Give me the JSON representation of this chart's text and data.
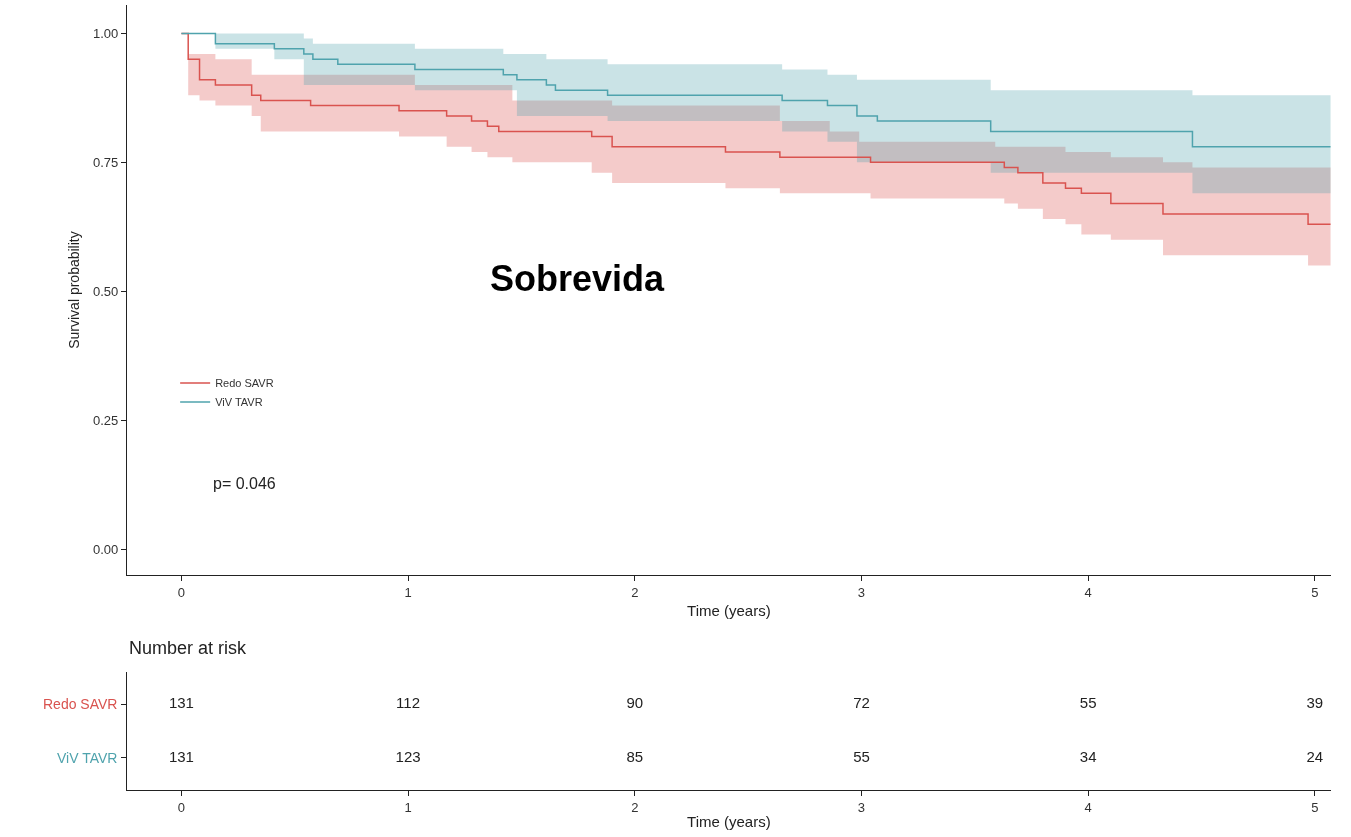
{
  "chart_data": [
    {
      "type": "step",
      "ylabel": "Survival probability",
      "xlabel": "Time (years)",
      "xlim": [
        -0.24,
        5.07
      ],
      "xticks": [
        0,
        1,
        2,
        3,
        4,
        5
      ],
      "ylim": [
        -0.05,
        1.055
      ],
      "yticks": [
        {
          "value": 0,
          "label": "0.00"
        },
        {
          "value": 0.25,
          "label": "0.25"
        },
        {
          "value": 0.5,
          "label": "0.50"
        },
        {
          "value": 0.75,
          "label": "0.75"
        },
        {
          "value": 1,
          "label": "1.00"
        }
      ],
      "legend": "left",
      "line_style": "solid",
      "marker": "none",
      "annotations": [
        "Sobrevida",
        "p= 0.046"
      ],
      "series": [
        {
          "name": "Redo SAVR",
          "color": "#d9534f",
          "x": [
            0,
            0.03,
            0.08,
            0.15,
            0.31,
            0.35,
            0.54,
            0.57,
            0.96,
            1.03,
            1.17,
            1.28,
            1.35,
            1.4,
            1.46,
            1.81,
            1.9,
            2.4,
            2.64,
            2.86,
            2.99,
            3.04,
            3.59,
            3.63,
            3.69,
            3.8,
            3.9,
            3.97,
            4.1,
            4.33,
            4.46,
            4.97,
            5.07
          ],
          "values": [
            1.0,
            0.95,
            0.91,
            0.9,
            0.88,
            0.87,
            0.87,
            0.86,
            0.85,
            0.85,
            0.84,
            0.83,
            0.82,
            0.81,
            0.81,
            0.8,
            0.78,
            0.77,
            0.76,
            0.76,
            0.76,
            0.75,
            0.75,
            0.74,
            0.73,
            0.71,
            0.7,
            0.69,
            0.67,
            0.65,
            0.65,
            0.63,
            0.63
          ],
          "lower": [
            1.0,
            0.88,
            0.87,
            0.86,
            0.84,
            0.81,
            0.81,
            0.81,
            0.8,
            0.8,
            0.78,
            0.77,
            0.76,
            0.76,
            0.75,
            0.73,
            0.71,
            0.7,
            0.69,
            0.69,
            0.69,
            0.68,
            0.68,
            0.67,
            0.66,
            0.64,
            0.63,
            0.61,
            0.6,
            0.57,
            0.57,
            0.55,
            0.55
          ],
          "upper": [
            1.0,
            0.96,
            0.96,
            0.95,
            0.92,
            0.92,
            0.92,
            0.92,
            0.92,
            0.9,
            0.9,
            0.9,
            0.9,
            0.9,
            0.87,
            0.87,
            0.86,
            0.86,
            0.83,
            0.81,
            0.79,
            0.79,
            0.78,
            0.78,
            0.78,
            0.78,
            0.77,
            0.77,
            0.76,
            0.75,
            0.74,
            0.74,
            0.74
          ]
        },
        {
          "name": "ViV TAVR",
          "color": "#4fa3ad",
          "x": [
            0,
            0.15,
            0.41,
            0.54,
            0.58,
            0.69,
            1.03,
            1.42,
            1.48,
            1.61,
            1.65,
            1.88,
            2.65,
            2.85,
            2.98,
            3.07,
            3.57,
            3.9,
            4.46,
            5.07
          ],
          "values": [
            1.0,
            0.98,
            0.97,
            0.96,
            0.95,
            0.94,
            0.93,
            0.92,
            0.91,
            0.9,
            0.89,
            0.88,
            0.87,
            0.86,
            0.84,
            0.83,
            0.81,
            0.81,
            0.78,
            0.78
          ],
          "lower": [
            1.0,
            0.97,
            0.95,
            0.9,
            0.9,
            0.9,
            0.89,
            0.89,
            0.84,
            0.84,
            0.84,
            0.83,
            0.81,
            0.79,
            0.75,
            0.75,
            0.73,
            0.73,
            0.69,
            0.69
          ],
          "upper": [
            1.0,
            1.0,
            1.0,
            0.99,
            0.98,
            0.98,
            0.97,
            0.96,
            0.96,
            0.95,
            0.95,
            0.94,
            0.93,
            0.92,
            0.91,
            0.91,
            0.89,
            0.89,
            0.88,
            0.88
          ]
        }
      ]
    },
    {
      "type": "heatmap",
      "title": "Number at risk",
      "xlabel": "Time (years)",
      "xlim": [
        -0.24,
        5.07
      ],
      "xticks": [
        0,
        1,
        2,
        3,
        4,
        5
      ],
      "x": [
        0,
        1,
        2,
        3,
        4,
        5
      ],
      "y_categories": [
        "Redo SAVR",
        "ViV TAVR"
      ],
      "colors": [
        "#d9534f",
        "#4fa3ad"
      ],
      "data_labels": true,
      "cells": [
        [
          131,
          112,
          90,
          72,
          55,
          39
        ],
        [
          131,
          123,
          85,
          55,
          34,
          24
        ]
      ]
    }
  ]
}
